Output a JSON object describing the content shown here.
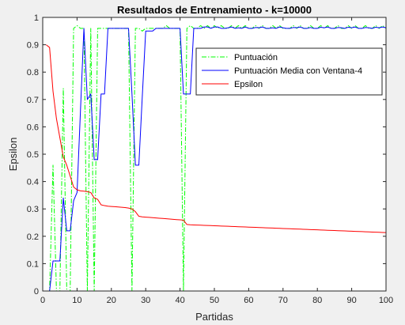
{
  "chart_data": {
    "type": "line",
    "title": "Resultados de Entrenamiento - k=10000",
    "xlabel": "Partidas",
    "ylabel": "Epsilon",
    "xlim": [
      0,
      100
    ],
    "ylim": [
      0,
      1
    ],
    "xticks": [
      0,
      10,
      20,
      30,
      40,
      50,
      60,
      70,
      80,
      90,
      100
    ],
    "yticks": [
      0,
      0.1,
      0.2,
      0.3,
      0.4,
      0.5,
      0.6,
      0.7,
      0.8,
      0.9,
      1
    ],
    "xtick_labels": [
      "0",
      "10",
      "20",
      "30",
      "40",
      "50",
      "60",
      "70",
      "80",
      "90",
      "100"
    ],
    "ytick_labels": [
      "0",
      "0.1",
      "0.2",
      "0.3",
      "0.4",
      "0.5",
      "0.6",
      "0.7",
      "0.8",
      "0.9",
      "1"
    ],
    "grid": false,
    "legend_position": "top-right",
    "series": [
      {
        "name": "Puntuación",
        "color": "#00ff00",
        "style": "dash-dot",
        "x": [
          1,
          2,
          3,
          4,
          5,
          6,
          7,
          8,
          9,
          10,
          11,
          12,
          13,
          14,
          15,
          16,
          17,
          18,
          19,
          20,
          21,
          22,
          23,
          24,
          25,
          26,
          27,
          28,
          29,
          30,
          31,
          32,
          33,
          34,
          35,
          36,
          37,
          38,
          39,
          40,
          41,
          42,
          43,
          44,
          45,
          46,
          47,
          48,
          49,
          50,
          51,
          52,
          53,
          54,
          55,
          56,
          57,
          58,
          59,
          60,
          61,
          62,
          63,
          64,
          65,
          66,
          67,
          68,
          69,
          70,
          71,
          72,
          73,
          74,
          75,
          76,
          77,
          78,
          79,
          80,
          81,
          82,
          83,
          84,
          85,
          86,
          87,
          88,
          89,
          90,
          91,
          92,
          93,
          94,
          95,
          96,
          97,
          98,
          99,
          100
        ],
        "values": [
          0,
          0,
          0.46,
          0,
          0,
          0.74,
          0,
          0,
          0.96,
          0.97,
          0.96,
          0.96,
          0,
          0.96,
          0,
          0.96,
          0.96,
          0.96,
          0.96,
          0.96,
          0.96,
          0.96,
          0.96,
          0.96,
          0.96,
          0,
          0.96,
          0.96,
          0.95,
          0.96,
          0.96,
          0.96,
          0.96,
          0.96,
          0.96,
          0.97,
          0.96,
          0.96,
          0.96,
          0.96,
          0,
          0.96,
          0.97,
          0.96,
          0.96,
          0.97,
          0.96,
          0.97,
          0.96,
          0.97,
          0.96,
          0.97,
          0.96,
          0.96,
          0.97,
          0.96,
          0.97,
          0.96,
          0.97,
          0.96,
          0.96,
          0.97,
          0.96,
          0.97,
          0.96,
          0.96,
          0.97,
          0.96,
          0.97,
          0.96,
          0.96,
          0.96,
          0.97,
          0.96,
          0.97,
          0.96,
          0.96,
          0.97,
          0.96,
          0.96,
          0.97,
          0.96,
          0.97,
          0.96,
          0.96,
          0.97,
          0.96,
          0.96,
          0.97,
          0.96,
          0.97,
          0.96,
          0.96,
          0.97,
          0.96,
          0.96,
          0.97,
          0.96,
          0.97,
          0.96
        ]
      },
      {
        "name": "Puntuación Media con Ventana-4",
        "color": "#0000ff",
        "style": "solid",
        "x": [
          1,
          2,
          3,
          4,
          5,
          6,
          7,
          8,
          9,
          10,
          11,
          12,
          13,
          14,
          15,
          16,
          17,
          18,
          19,
          20,
          21,
          22,
          23,
          24,
          25,
          26,
          27,
          28,
          29,
          30,
          31,
          32,
          33,
          34,
          35,
          36,
          37,
          38,
          39,
          40,
          41,
          42,
          43,
          44,
          45,
          46,
          47,
          48,
          49,
          50,
          51,
          52,
          53,
          54,
          55,
          56,
          57,
          58,
          59,
          60,
          61,
          62,
          63,
          64,
          65,
          66,
          67,
          68,
          69,
          70,
          71,
          72,
          73,
          74,
          75,
          76,
          77,
          78,
          79,
          80,
          81,
          82,
          83,
          84,
          85,
          86,
          87,
          88,
          89,
          90,
          91,
          92,
          93,
          94,
          95,
          96,
          97,
          98,
          99,
          100
        ],
        "values": [
          0,
          0,
          0.11,
          0.11,
          0.11,
          0.34,
          0.22,
          0.22,
          0.33,
          0.36,
          0.66,
          0.96,
          0.7,
          0.72,
          0.48,
          0.48,
          0.72,
          0.72,
          0.96,
          0.96,
          0.96,
          0.96,
          0.96,
          0.96,
          0.96,
          0.72,
          0.46,
          0.46,
          0.71,
          0.95,
          0.95,
          0.95,
          0.96,
          0.96,
          0.96,
          0.96,
          0.96,
          0.96,
          0.96,
          0.96,
          0.72,
          0.72,
          0.72,
          0.96,
          0.96,
          0.96,
          0.965,
          0.965,
          0.96,
          0.965,
          0.965,
          0.96,
          0.96,
          0.962,
          0.965,
          0.96,
          0.962,
          0.96,
          0.965,
          0.96,
          0.96,
          0.963,
          0.962,
          0.965,
          0.96,
          0.96,
          0.962,
          0.96,
          0.965,
          0.962,
          0.96,
          0.96,
          0.963,
          0.962,
          0.965,
          0.96,
          0.96,
          0.963,
          0.96,
          0.96,
          0.964,
          0.962,
          0.965,
          0.96,
          0.96,
          0.963,
          0.962,
          0.96,
          0.964,
          0.962,
          0.965,
          0.96,
          0.96,
          0.963,
          0.962,
          0.96,
          0.964,
          0.962,
          0.965,
          0.962
        ]
      },
      {
        "name": "Epsilon",
        "color": "#ff0000",
        "style": "solid",
        "x": [
          1,
          2,
          3,
          4,
          5,
          6,
          7,
          8,
          9,
          10,
          11,
          12,
          13,
          14,
          15,
          16,
          17,
          18,
          19,
          20,
          21,
          22,
          23,
          24,
          25,
          26,
          27,
          28,
          29,
          30,
          31,
          32,
          33,
          34,
          35,
          36,
          37,
          38,
          39,
          40,
          41,
          42,
          43,
          44,
          45,
          46,
          47,
          48,
          49,
          50,
          51,
          52,
          53,
          54,
          55,
          56,
          57,
          58,
          59,
          60,
          61,
          62,
          63,
          64,
          65,
          66,
          67,
          68,
          69,
          70,
          71,
          72,
          73,
          74,
          75,
          76,
          77,
          78,
          79,
          80,
          81,
          82,
          83,
          84,
          85,
          86,
          87,
          88,
          89,
          90,
          91,
          92,
          93,
          94,
          95,
          96,
          97,
          98,
          99,
          100
        ],
        "values": [
          0.9,
          0.89,
          0.73,
          0.63,
          0.56,
          0.49,
          0.46,
          0.42,
          0.38,
          0.37,
          0.366,
          0.365,
          0.363,
          0.36,
          0.34,
          0.335,
          0.315,
          0.312,
          0.31,
          0.309,
          0.308,
          0.307,
          0.306,
          0.305,
          0.303,
          0.3,
          0.29,
          0.273,
          0.271,
          0.27,
          0.269,
          0.268,
          0.267,
          0.266,
          0.265,
          0.264,
          0.263,
          0.262,
          0.261,
          0.26,
          0.259,
          0.243,
          0.242,
          0.2415,
          0.241,
          0.2405,
          0.24,
          0.2395,
          0.239,
          0.2385,
          0.238,
          0.2375,
          0.237,
          0.2365,
          0.236,
          0.2355,
          0.235,
          0.2345,
          0.234,
          0.2335,
          0.233,
          0.2325,
          0.232,
          0.2315,
          0.231,
          0.2305,
          0.23,
          0.2295,
          0.229,
          0.2285,
          0.228,
          0.2275,
          0.227,
          0.2265,
          0.226,
          0.2255,
          0.225,
          0.2245,
          0.224,
          0.2235,
          0.223,
          0.2225,
          0.222,
          0.2215,
          0.221,
          0.2205,
          0.22,
          0.2195,
          0.219,
          0.2185,
          0.218,
          0.2175,
          0.217,
          0.2165,
          0.216,
          0.2155,
          0.215,
          0.2145,
          0.214,
          0.2135
        ]
      }
    ]
  }
}
